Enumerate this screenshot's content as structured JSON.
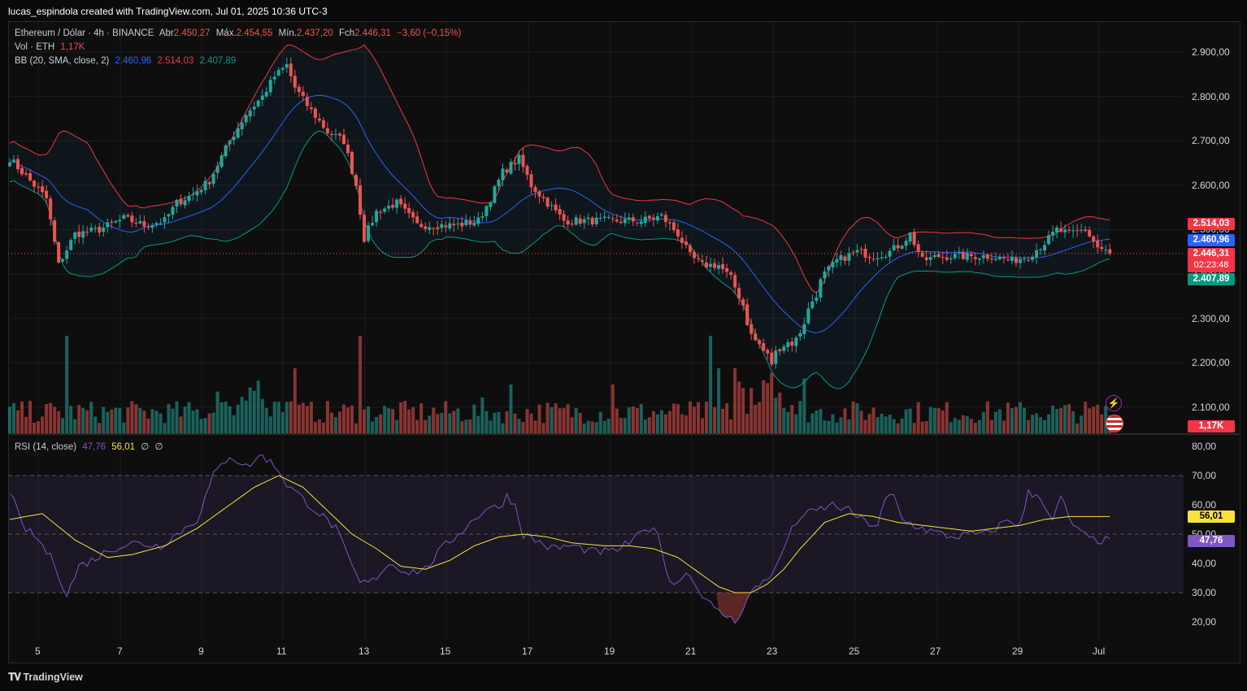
{
  "header": {
    "credit": "lucas_espindola created with TradingView.com, Jul 01, 2025 10:36 UTC-3"
  },
  "legend": {
    "symbol": "Ethereum / Dólar · 4h · BINANCE",
    "o_label": "Abr",
    "o": "2.450,27",
    "h_label": "Máx.",
    "h": "2.454,55",
    "l_label": "Mín.",
    "l": "2.437,20",
    "c_label": "Fch",
    "c": "2.446,31",
    "chg": "−3,60 (−0,15%)",
    "vol_label": "Vol · ETH",
    "vol": "1,17K",
    "bb_label": "BB (20, SMA, close, 2)",
    "bb_mid": "2.460,96",
    "bb_up": "2.514,03",
    "bb_low": "2.407,89",
    "rsi_label": "RSI (14, close)",
    "rsi": "47,76",
    "rsi_ma": "56,01",
    "sym1": "∅",
    "sym2": "∅"
  },
  "price_tags": {
    "upper": "2.514,03",
    "middle": "2.460,96",
    "last": "2.446,31",
    "countdown": "02:23:48",
    "lower": "2.407,89",
    "volume": "1,17K"
  },
  "rsi_tags": {
    "ma": "56,01",
    "rsi": "47,76"
  },
  "footer": {
    "brand": "TradingView"
  },
  "colors": {
    "up": "#26a69a",
    "down": "#ef5350",
    "bb_upper": "#f23645",
    "bb_mid": "#2962ff",
    "bb_lower": "#089981",
    "rsi": "#7e57c2",
    "rsi_ma": "#f7e33b"
  },
  "chart_data": {
    "type": "candlestick",
    "title": "Ethereum / Dólar · 4h · BINANCE",
    "x_ticks": [
      "5",
      "7",
      "9",
      "11",
      "13",
      "15",
      "17",
      "19",
      "21",
      "23",
      "25",
      "27",
      "29",
      "Jul"
    ],
    "price_axis": {
      "ticks": [
        "2.900,00",
        "2.800,00",
        "2.700,00",
        "2.600,00",
        "2.500,00",
        "2.400,00",
        "2.300,00",
        "2.200,00",
        "2.100,00"
      ],
      "ylim": [
        2080,
        2950
      ]
    },
    "rsi_axis": {
      "ticks": [
        "80,00",
        "70,00",
        "60,00",
        "50,00",
        "40,00",
        "30,00",
        "20,00"
      ],
      "ylim": [
        15,
        82
      ],
      "band": [
        30,
        70
      ]
    },
    "close_anchors": [
      [
        0,
        2660
      ],
      [
        4,
        2620
      ],
      [
        9,
        2570
      ],
      [
        12,
        2420
      ],
      [
        16,
        2490
      ],
      [
        22,
        2500
      ],
      [
        28,
        2525
      ],
      [
        33,
        2510
      ],
      [
        38,
        2520
      ],
      [
        41,
        2560
      ],
      [
        45,
        2580
      ],
      [
        49,
        2610
      ],
      [
        54,
        2700
      ],
      [
        58,
        2760
      ],
      [
        62,
        2800
      ],
      [
        65,
        2845
      ],
      [
        68,
        2870
      ],
      [
        70,
        2820
      ],
      [
        73,
        2780
      ],
      [
        78,
        2720
      ],
      [
        82,
        2700
      ],
      [
        85,
        2600
      ],
      [
        87,
        2480
      ],
      [
        90,
        2540
      ],
      [
        95,
        2560
      ],
      [
        100,
        2510
      ],
      [
        105,
        2510
      ],
      [
        110,
        2510
      ],
      [
        115,
        2520
      ],
      [
        118,
        2570
      ],
      [
        121,
        2630
      ],
      [
        125,
        2660
      ],
      [
        128,
        2600
      ],
      [
        131,
        2570
      ],
      [
        136,
        2520
      ],
      [
        141,
        2520
      ],
      [
        146,
        2520
      ],
      [
        151,
        2520
      ],
      [
        155,
        2520
      ],
      [
        160,
        2530
      ],
      [
        164,
        2490
      ],
      [
        167,
        2440
      ],
      [
        170,
        2420
      ],
      [
        174,
        2420
      ],
      [
        177,
        2390
      ],
      [
        180,
        2330
      ],
      [
        182,
        2260
      ],
      [
        184,
        2240
      ],
      [
        187,
        2200
      ],
      [
        189,
        2240
      ],
      [
        193,
        2250
      ],
      [
        197,
        2340
      ],
      [
        200,
        2400
      ],
      [
        203,
        2430
      ],
      [
        208,
        2450
      ],
      [
        212,
        2440
      ],
      [
        216,
        2450
      ],
      [
        219,
        2470
      ],
      [
        221,
        2490
      ],
      [
        224,
        2430
      ],
      [
        228,
        2440
      ],
      [
        232,
        2440
      ],
      [
        236,
        2440
      ],
      [
        241,
        2440
      ],
      [
        246,
        2430
      ],
      [
        250,
        2440
      ],
      [
        254,
        2470
      ],
      [
        257,
        2500
      ],
      [
        260,
        2490
      ],
      [
        264,
        2500
      ],
      [
        267,
        2460
      ],
      [
        270,
        2446
      ]
    ],
    "rsi_anchors": [
      [
        0,
        65
      ],
      [
        3,
        53
      ],
      [
        7,
        48
      ],
      [
        11,
        40
      ],
      [
        14,
        29
      ],
      [
        17,
        39
      ],
      [
        20,
        41
      ],
      [
        25,
        45
      ],
      [
        30,
        47
      ],
      [
        37,
        46
      ],
      [
        42,
        51
      ],
      [
        46,
        55
      ],
      [
        50,
        70
      ],
      [
        54,
        77
      ],
      [
        58,
        73
      ],
      [
        62,
        77
      ],
      [
        66,
        72
      ],
      [
        68,
        67
      ],
      [
        72,
        62
      ],
      [
        76,
        57
      ],
      [
        80,
        52
      ],
      [
        83,
        42
      ],
      [
        86,
        33
      ],
      [
        89,
        34
      ],
      [
        93,
        40
      ],
      [
        98,
        37
      ],
      [
        102,
        38
      ],
      [
        106,
        45
      ],
      [
        110,
        50
      ],
      [
        114,
        55
      ],
      [
        117,
        59
      ],
      [
        120,
        59
      ],
      [
        122,
        63
      ],
      [
        124,
        60
      ],
      [
        126,
        50
      ],
      [
        129,
        48
      ],
      [
        133,
        45
      ],
      [
        138,
        46
      ],
      [
        143,
        44
      ],
      [
        148,
        44
      ],
      [
        152,
        47
      ],
      [
        155,
        50
      ],
      [
        158,
        53
      ],
      [
        160,
        45
      ],
      [
        162,
        34
      ],
      [
        164,
        33
      ],
      [
        166,
        38
      ],
      [
        168,
        33
      ],
      [
        171,
        28
      ],
      [
        173,
        24
      ],
      [
        176,
        22
      ],
      [
        178,
        20
      ],
      [
        180,
        25
      ],
      [
        182,
        30
      ],
      [
        185,
        34
      ],
      [
        188,
        38
      ],
      [
        191,
        49
      ],
      [
        194,
        56
      ],
      [
        198,
        58
      ],
      [
        202,
        60
      ],
      [
        206,
        58
      ],
      [
        210,
        54
      ],
      [
        213,
        53
      ],
      [
        215,
        62
      ],
      [
        217,
        63
      ],
      [
        219,
        55
      ],
      [
        222,
        53
      ],
      [
        226,
        51
      ],
      [
        231,
        49
      ],
      [
        236,
        50
      ],
      [
        240,
        50
      ],
      [
        245,
        55
      ],
      [
        248,
        53
      ],
      [
        250,
        64
      ],
      [
        253,
        63
      ],
      [
        256,
        54
      ],
      [
        258,
        63
      ],
      [
        260,
        55
      ],
      [
        263,
        50
      ],
      [
        266,
        48
      ],
      [
        270,
        47.8
      ]
    ],
    "rsi_ma_anchors": [
      [
        0,
        55
      ],
      [
        8,
        57
      ],
      [
        16,
        48
      ],
      [
        24,
        42
      ],
      [
        30,
        43
      ],
      [
        38,
        46
      ],
      [
        46,
        52
      ],
      [
        54,
        60
      ],
      [
        60,
        66
      ],
      [
        66,
        70
      ],
      [
        72,
        66
      ],
      [
        78,
        58
      ],
      [
        84,
        50
      ],
      [
        90,
        45
      ],
      [
        96,
        39
      ],
      [
        102,
        38
      ],
      [
        108,
        41
      ],
      [
        114,
        46
      ],
      [
        120,
        49
      ],
      [
        126,
        50
      ],
      [
        132,
        49
      ],
      [
        138,
        47
      ],
      [
        146,
        46
      ],
      [
        152,
        46
      ],
      [
        158,
        45
      ],
      [
        164,
        42
      ],
      [
        168,
        38
      ],
      [
        174,
        32
      ],
      [
        178,
        30
      ],
      [
        182,
        30
      ],
      [
        186,
        33
      ],
      [
        190,
        38
      ],
      [
        194,
        45
      ],
      [
        200,
        54
      ],
      [
        206,
        57
      ],
      [
        212,
        56
      ],
      [
        218,
        54
      ],
      [
        224,
        53
      ],
      [
        230,
        52
      ],
      [
        236,
        51
      ],
      [
        242,
        52
      ],
      [
        248,
        53
      ],
      [
        254,
        55
      ],
      [
        260,
        56
      ],
      [
        266,
        56
      ],
      [
        270,
        56
      ]
    ],
    "volume_spikes": [
      [
        14,
        6
      ],
      [
        86,
        6
      ],
      [
        70,
        4
      ],
      [
        148,
        3
      ],
      [
        172,
        6
      ],
      [
        174,
        4
      ],
      [
        178,
        4
      ],
      [
        123,
        3
      ],
      [
        116,
        2.2
      ]
    ],
    "volume_max_label": "1,17K"
  }
}
